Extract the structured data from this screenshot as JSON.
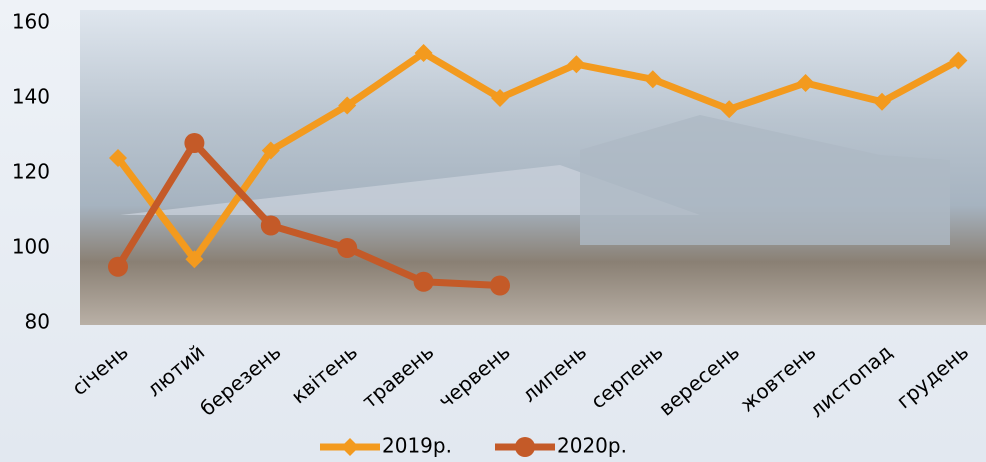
{
  "chart_data": {
    "type": "line",
    "categories": [
      "січень",
      "лютий",
      "березень",
      "квітень",
      "травень",
      "червень",
      "липень",
      "серпень",
      "вересень",
      "жовтень",
      "листопад",
      "грудень"
    ],
    "series": [
      {
        "name": "2019р.",
        "color": "#f39a1e",
        "marker": "diamond",
        "values": [
          124,
          97,
          126,
          138,
          152,
          140,
          149,
          145,
          137,
          144,
          139,
          150
        ]
      },
      {
        "name": "2020р.",
        "color": "#c45a28",
        "marker": "circle",
        "values": [
          95,
          128,
          106,
          100,
          91,
          90,
          null,
          null,
          null,
          null,
          null,
          null
        ]
      }
    ],
    "ylim": [
      80,
      160
    ],
    "yticks": [
      80,
      100,
      120,
      140,
      160
    ],
    "grid": false,
    "legend": "bottom"
  }
}
